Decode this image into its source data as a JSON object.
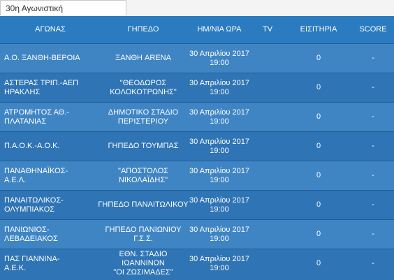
{
  "tab": {
    "label": "30η Αγωνιστική"
  },
  "table": {
    "columns": [
      "ΑΓΩΝΑΣ",
      "ΓΗΠΕΔΟ",
      "ΗΜ/ΝΙΑ ΩΡΑ",
      "TV",
      "ΕΙΣΙΤΗΡΙΑ",
      "SCORE"
    ],
    "rows": [
      {
        "match": [
          "Α.Ο. ΞΑΝΘΗ-ΒΕΡΟΙΑ"
        ],
        "stadium": [
          "ΞΑΝΘΗ ARENA"
        ],
        "date": "30 Απριλίου 2017",
        "time": "19:00",
        "tv": "",
        "tickets": "0",
        "score": "-"
      },
      {
        "match": [
          "ΑΣΤΕΡΑΣ ΤΡΙΠ.-ΑΕΠ",
          "ΗΡΑΚΛΗΣ"
        ],
        "stadium": [
          "\"ΘΕΟΔΩΡΟΣ",
          "ΚΟΛΟΚΟΤΡΩΝΗΣ\""
        ],
        "date": "30 Απριλίου 2017",
        "time": "19:00",
        "tv": "",
        "tickets": "0",
        "score": "-"
      },
      {
        "match": [
          "ΑΤΡΟΜΗΤΟΣ ΑΘ.-",
          "ΠΛΑΤΑΝΙΑΣ"
        ],
        "stadium": [
          "ΔΗΜΟΤΙΚΟ ΣΤΑΔΙΟ",
          "ΠΕΡΙΣΤΕΡΙΟΥ"
        ],
        "date": "30 Απριλίου 2017",
        "time": "19:00",
        "tv": "",
        "tickets": "0",
        "score": "-"
      },
      {
        "match": [
          "Π.Α.Ο.Κ.-Α.Ο.Κ."
        ],
        "stadium": [
          "ΓΗΠΕΔΟ ΤΟΥΜΠΑΣ"
        ],
        "date": "30 Απριλίου 2017",
        "time": "19:00",
        "tv": "",
        "tickets": "0",
        "score": "-"
      },
      {
        "match": [
          "ΠΑΝΑΘΗΝΑΪΚΟΣ-",
          "Α.Ε.Λ."
        ],
        "stadium": [
          "\"ΑΠΟΣΤΟΛΟΣ",
          "ΝΙΚΟΛΑΪΔΗΣ\""
        ],
        "date": "30 Απριλίου 2017",
        "time": "19:00",
        "tv": "",
        "tickets": "0",
        "score": "-"
      },
      {
        "match": [
          "ΠΑΝΑΙΤΩΛΙΚΟΣ-",
          "ΟΛΥΜΠΙΑΚΟΣ"
        ],
        "stadium": [
          "ΓΗΠΕΔΟ ΠΑΝΑΙΤΩΛΙΚΟΥ"
        ],
        "date": "30 Απριλίου 2017",
        "time": "19:00",
        "tv": "",
        "tickets": "0",
        "score": "-"
      },
      {
        "match": [
          "ΠΑΝΙΩΝΙΟΣ-",
          "ΛΕΒΑΔΕΙΑΚΟΣ"
        ],
        "stadium": [
          "ΓΗΠΕΔΟ ΠΑΝΙΩΝΙΟΥ",
          "Γ.Σ.Σ."
        ],
        "date": "30 Απριλίου 2017",
        "time": "19:00",
        "tv": "",
        "tickets": "0",
        "score": "-"
      },
      {
        "match": [
          "ΠΑΣ ΓΙΑΝΝΙΝΑ-",
          "Α.Ε.Κ."
        ],
        "stadium": [
          "ΕΘΝ. ΣΤΑΔΙΟ ΙΩΑΝΝΙΝΩΝ",
          "\"ΟΙ ΖΩΣΙΜΑΔΕΣ\""
        ],
        "date": "30 Απριλίου 2017",
        "time": "19:00",
        "tv": "",
        "tickets": "0",
        "score": "-"
      }
    ]
  },
  "colors": {
    "header_bg": "#2a7bc0",
    "row_light": "#3f85c4",
    "row_dark": "#2f74b5",
    "text": "#ffffff"
  }
}
